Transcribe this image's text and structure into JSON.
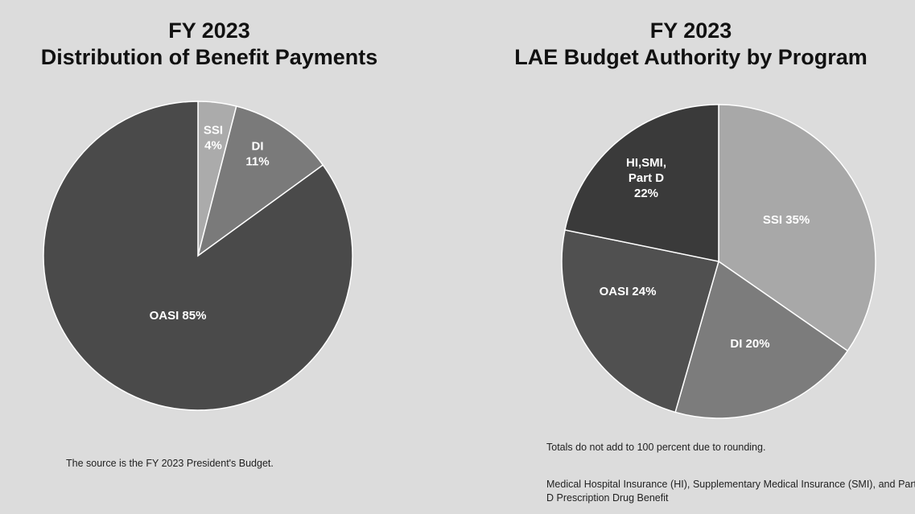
{
  "chart_data": [
    {
      "type": "pie",
      "title_line1": "FY 2023",
      "title_line2": "Distribution of Benefit Payments",
      "slices": [
        {
          "name": "SSI",
          "value": 4,
          "label_lines": [
            "SSI",
            "4%"
          ],
          "color": "#ababab"
        },
        {
          "name": "DI",
          "value": 11,
          "label_lines": [
            "DI",
            "11%"
          ],
          "color": "#7a7a7a"
        },
        {
          "name": "OASI",
          "value": 85,
          "label_lines": [
            "OASI 85%"
          ],
          "color": "#4a4a4a"
        }
      ],
      "note": "The source is the FY 2023 President's Budget."
    },
    {
      "type": "pie",
      "title_line1": "FY 2023",
      "title_line2": "LAE Budget Authority by Program",
      "slices": [
        {
          "name": "SSI",
          "value": 35,
          "label_lines": [
            "SSI  35%"
          ],
          "color": "#a8a8a8"
        },
        {
          "name": "DI",
          "value": 20,
          "label_lines": [
            "DI 20%"
          ],
          "color": "#7c7c7c"
        },
        {
          "name": "OASI",
          "value": 24,
          "label_lines": [
            "OASI 24%"
          ],
          "color": "#505050"
        },
        {
          "name": "HI,SMI, Part D",
          "value": 22,
          "label_lines": [
            "HI,SMI,",
            "Part D",
            "22%"
          ],
          "color": "#3a3a3a"
        }
      ],
      "notes": [
        "Totals do not add to 100 percent due to rounding.",
        "Medical Hospital Insurance (HI), Supplementary Medical Insurance (SMI), and Part D Prescription Drug Benefit"
      ]
    }
  ]
}
